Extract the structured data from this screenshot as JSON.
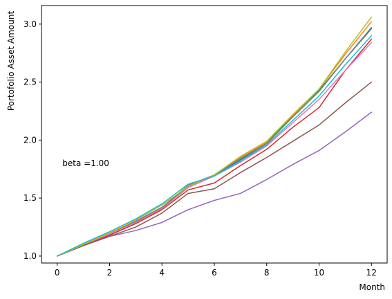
{
  "chart_data": {
    "type": "line",
    "title": "",
    "xlabel": "Month",
    "ylabel": "Portofolio Asset Amount",
    "xlim": [
      -0.6,
      12.6
    ],
    "ylim": [
      0.94,
      3.16
    ],
    "xticks": [
      0,
      2,
      4,
      6,
      8,
      10,
      12
    ],
    "yticks": [
      1.0,
      1.5,
      2.0,
      2.5,
      3.0
    ],
    "ytick_labels": [
      "1.0",
      "1.5",
      "2.0",
      "2.5",
      "3.0"
    ],
    "grid": false,
    "legend": "none",
    "annotation": {
      "text": "beta =1.00",
      "x": 0.2,
      "y": 1.8
    },
    "x": [
      0,
      1,
      2,
      3,
      4,
      5,
      6,
      7,
      8,
      9,
      10,
      11,
      12
    ],
    "series": [
      {
        "color": "#1f77b4",
        "values": [
          1.0,
          1.1,
          1.19,
          1.3,
          1.42,
          1.6,
          1.69,
          1.83,
          1.97,
          2.2,
          2.42,
          2.7,
          2.97
        ]
      },
      {
        "color": "#ff7f0e",
        "values": [
          1.0,
          1.1,
          1.19,
          1.29,
          1.41,
          1.59,
          1.7,
          1.85,
          1.98,
          2.21,
          2.44,
          2.74,
          3.02
        ]
      },
      {
        "color": "#2ca02c",
        "values": [
          1.0,
          1.1,
          1.2,
          1.3,
          1.42,
          1.6,
          1.7,
          1.84,
          1.97,
          2.22,
          2.43,
          2.7,
          2.96
        ]
      },
      {
        "color": "#d62728",
        "values": [
          1.0,
          1.09,
          1.18,
          1.28,
          1.4,
          1.57,
          1.63,
          1.78,
          1.92,
          2.11,
          2.28,
          2.6,
          2.87
        ]
      },
      {
        "color": "#9467bd",
        "values": [
          1.0,
          1.09,
          1.17,
          1.22,
          1.29,
          1.4,
          1.48,
          1.54,
          1.66,
          1.79,
          1.91,
          2.07,
          2.24
        ]
      },
      {
        "color": "#8c564b",
        "values": [
          1.0,
          1.09,
          1.17,
          1.25,
          1.37,
          1.54,
          1.58,
          1.72,
          1.85,
          1.99,
          2.13,
          2.32,
          2.5
        ]
      },
      {
        "color": "#e377c2",
        "values": [
          1.0,
          1.1,
          1.19,
          1.29,
          1.41,
          1.59,
          1.69,
          1.81,
          1.95,
          2.15,
          2.35,
          2.6,
          2.84
        ]
      },
      {
        "color": "#7f7f7f",
        "values": [
          1.0,
          1.1,
          1.2,
          1.3,
          1.42,
          1.61,
          1.7,
          1.84,
          1.97,
          2.2,
          2.42,
          2.7,
          2.96
        ]
      },
      {
        "color": "#bcbd22",
        "values": [
          1.0,
          1.1,
          1.2,
          1.31,
          1.44,
          1.6,
          1.7,
          1.86,
          1.99,
          2.22,
          2.44,
          2.76,
          3.06
        ]
      },
      {
        "color": "#17becf",
        "values": [
          1.0,
          1.11,
          1.21,
          1.32,
          1.45,
          1.62,
          1.69,
          1.82,
          1.96,
          2.17,
          2.38,
          2.65,
          2.9
        ]
      }
    ]
  }
}
